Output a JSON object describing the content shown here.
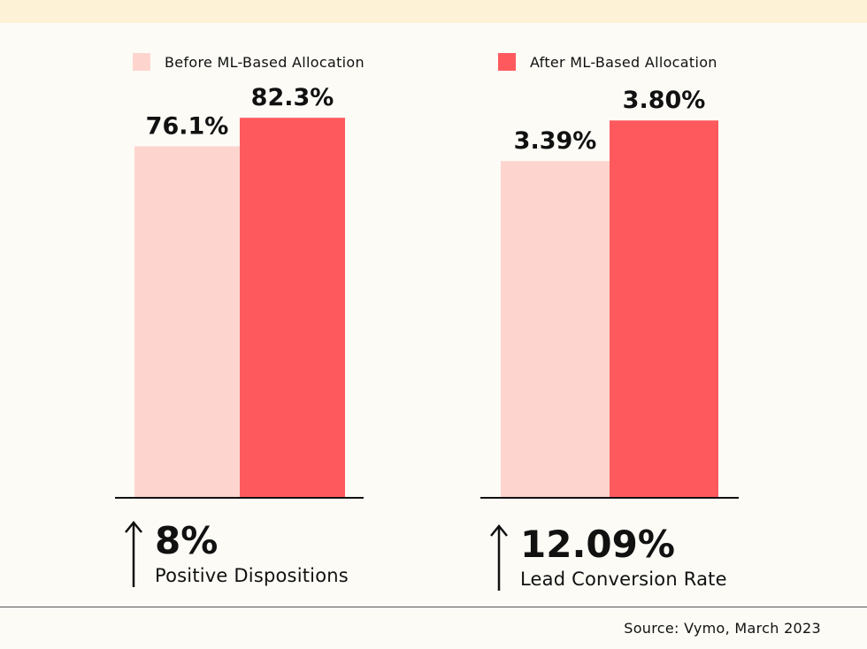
{
  "chart_data": [
    {
      "type": "bar",
      "categories": [
        "Positive Dispositions"
      ],
      "series": [
        {
          "name": "Before ML-Based Allocation",
          "values": [
            76.1
          ],
          "labels": [
            "76.1%"
          ]
        },
        {
          "name": "After ML-Based Allocation",
          "values": [
            82.3
          ],
          "labels": [
            "82.3%"
          ]
        }
      ],
      "ylim": [
        0,
        100
      ]
    },
    {
      "type": "bar",
      "categories": [
        "Lead Conversion Rate"
      ],
      "series": [
        {
          "name": "Before ML-Based Allocation",
          "values": [
            3.39
          ],
          "labels": [
            "3.39%"
          ]
        },
        {
          "name": "After ML-Based Allocation",
          "values": [
            3.8
          ],
          "labels": [
            "3.80%"
          ]
        }
      ],
      "ylim": [
        0,
        4.65
      ]
    }
  ],
  "legend": {
    "before": {
      "label": "Before ML-Based Allocation",
      "color": "#fdd5ce"
    },
    "after": {
      "label": "After ML-Based Allocation",
      "color": "#fe5a5e"
    }
  },
  "stats": [
    {
      "value": "8%",
      "caption": "Positive Dispositions",
      "icon": "arrow-up-icon"
    },
    {
      "value": "12.09%",
      "caption": "Lead Conversion Rate",
      "icon": "arrow-up-icon"
    }
  ],
  "source": "Source: Vymo, March 2023"
}
